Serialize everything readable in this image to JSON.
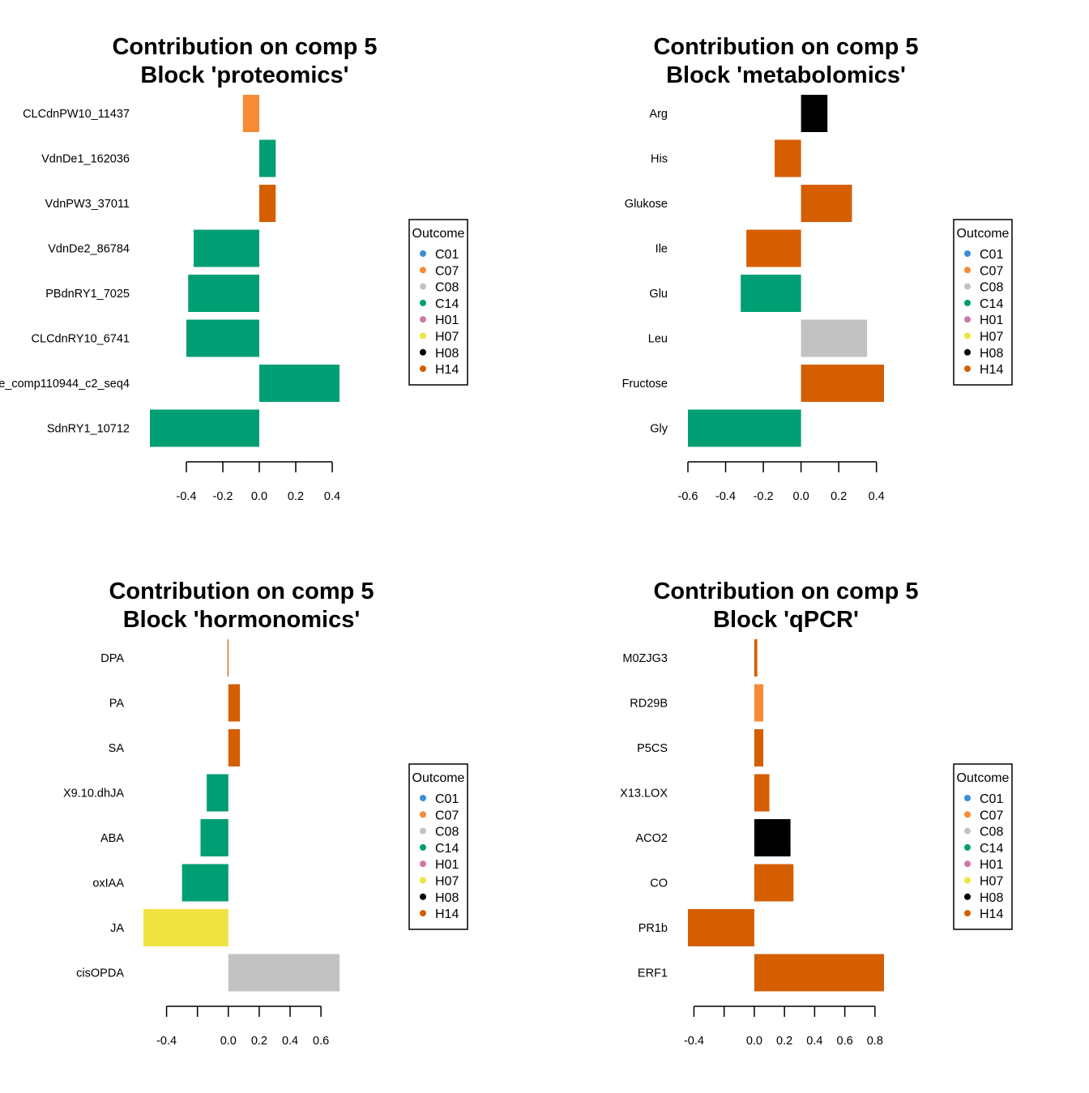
{
  "chart_data": [
    {
      "type": "bar",
      "orientation": "horizontal",
      "title": [
        "Contribution on comp 5",
        "Block 'proteomics'"
      ],
      "categories": [
        "CLCdnPW10_11437",
        "VdnDe1_162036",
        "VdnPW3_37011",
        "VdnDe2_86784",
        "PBdnRY1_7025",
        "CLCdnRY10_6741",
        "e_comp110944_c2_seq4",
        "SdnRY1_10712"
      ],
      "values": [
        -0.09,
        0.09,
        0.09,
        -0.36,
        -0.39,
        -0.4,
        0.44,
        -0.6
      ],
      "outcomes": [
        "C07",
        "C14",
        "H14",
        "C14",
        "C14",
        "C14",
        "C14",
        "C14"
      ],
      "xticks": [
        -0.4,
        -0.2,
        0.0,
        0.2,
        0.4
      ],
      "xtick_labels": [
        "-0.4",
        "-0.2",
        "0.0",
        "0.2",
        "0.4"
      ],
      "xlim": [
        -0.6,
        0.44
      ],
      "legend": {
        "title": "Outcome",
        "position": "right"
      }
    },
    {
      "type": "bar",
      "orientation": "horizontal",
      "title": [
        "Contribution on comp 5",
        "Block 'metabolomics'"
      ],
      "categories": [
        "Arg",
        "His",
        "Glukose",
        "Ile",
        "Glu",
        "Leu",
        "Fructose",
        "Gly"
      ],
      "values": [
        0.14,
        -0.14,
        0.27,
        -0.29,
        -0.32,
        0.35,
        0.44,
        -0.6
      ],
      "outcomes": [
        "H08",
        "H14",
        "H14",
        "H14",
        "C14",
        "C08",
        "H14",
        "C14"
      ],
      "xticks": [
        -0.6,
        -0.4,
        -0.2,
        0.0,
        0.2,
        0.4
      ],
      "xtick_labels": [
        "-0.6",
        "-0.4",
        "-0.2",
        "0.0",
        "0.2",
        "0.4"
      ],
      "xlim": [
        -0.6,
        0.44
      ],
      "legend": {
        "title": "Outcome",
        "position": "right"
      }
    },
    {
      "type": "bar",
      "orientation": "horizontal",
      "title": [
        "Contribution on comp 5",
        "Block 'hormonomics'"
      ],
      "categories": [
        "DPA",
        "PA",
        "SA",
        "X9.10.dhJA",
        "ABA",
        "oxIAA",
        "JA",
        "cisOPDA"
      ],
      "values": [
        -0.005,
        0.075,
        0.075,
        -0.14,
        -0.18,
        -0.3,
        -0.55,
        0.72
      ],
      "outcomes": [
        "H14",
        "H14",
        "H14",
        "C14",
        "C14",
        "C14",
        "H07",
        "C08"
      ],
      "xticks": [
        -0.4,
        -0.2,
        0.0,
        0.2,
        0.4,
        0.6
      ],
      "xtick_labels": [
        "-0.4",
        "",
        "0.0",
        "0.2",
        "0.4",
        "0.6"
      ],
      "xlim": [
        -0.55,
        0.72
      ],
      "legend": {
        "title": "Outcome",
        "position": "right"
      }
    },
    {
      "type": "bar",
      "orientation": "horizontal",
      "title": [
        "Contribution on comp 5",
        "Block 'qPCR'"
      ],
      "categories": [
        "M0ZJG3",
        "RD29B",
        "P5CS",
        "X13.LOX",
        "ACO2",
        "CO",
        "PR1b",
        "ERF1"
      ],
      "values": [
        0.02,
        0.06,
        0.06,
        0.1,
        0.24,
        0.26,
        -0.44,
        0.86
      ],
      "outcomes": [
        "H14",
        "C07",
        "H14",
        "H14",
        "H08",
        "H14",
        "H14",
        "H14"
      ],
      "xticks": [
        -0.4,
        -0.2,
        0.0,
        0.2,
        0.4,
        0.6,
        0.8
      ],
      "xtick_labels": [
        "-0.4",
        "",
        "0.0",
        "0.2",
        "0.4",
        "0.6",
        "0.8"
      ],
      "xlim": [
        -0.44,
        0.86
      ],
      "legend": {
        "title": "Outcome",
        "position": "right"
      }
    }
  ],
  "legend_entries": [
    {
      "label": "C01",
      "color": "#3a8ed6"
    },
    {
      "label": "C07",
      "color": "#f58b35"
    },
    {
      "label": "C08",
      "color": "#c2c2c2"
    },
    {
      "label": "C14",
      "color": "#009e73"
    },
    {
      "label": "H01",
      "color": "#cc79a7"
    },
    {
      "label": "H07",
      "color": "#f0e442"
    },
    {
      "label": "H08",
      "color": "#000000"
    },
    {
      "label": "H14",
      "color": "#d55e00"
    }
  ]
}
